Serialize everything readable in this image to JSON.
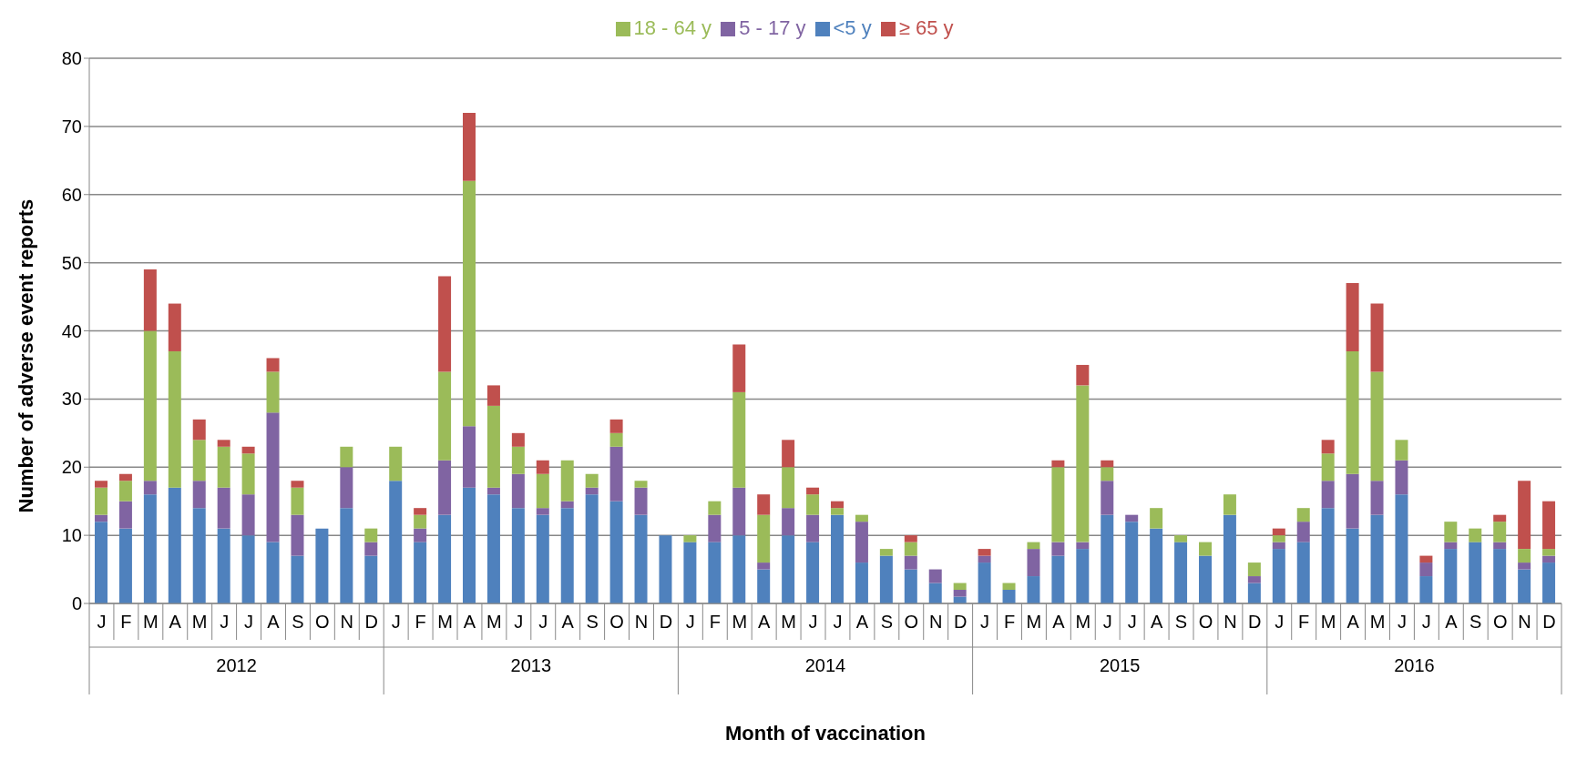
{
  "chart_data": {
    "type": "bar",
    "stacked": true,
    "xlabel": "Month of vaccination",
    "ylabel": "Number of adverse event reports",
    "categories": [
      "J",
      "F",
      "M",
      "A",
      "M",
      "J",
      "J",
      "A",
      "S",
      "O",
      "N",
      "D",
      "J",
      "F",
      "M",
      "A",
      "M",
      "J",
      "J",
      "A",
      "S",
      "O",
      "N",
      "D",
      "J",
      "F",
      "M",
      "A",
      "M",
      "J",
      "J",
      "A",
      "S",
      "O",
      "N",
      "D",
      "J",
      "F",
      "M",
      "A",
      "M",
      "J",
      "J",
      "A",
      "S",
      "O",
      "N",
      "D",
      "J",
      "F",
      "M",
      "A",
      "M",
      "J",
      "J",
      "A",
      "S",
      "O",
      "N",
      "D"
    ],
    "annotations": [
      "2012",
      "2013",
      "2014",
      "2015",
      "2016"
    ],
    "series": [
      {
        "name": "<5 y",
        "color": "#4f81bd",
        "values": [
          12,
          11,
          16,
          17,
          14,
          11,
          10,
          9,
          7,
          11,
          14,
          7,
          18,
          9,
          13,
          17,
          16,
          14,
          13,
          14,
          16,
          15,
          13,
          10,
          9,
          9,
          10,
          5,
          10,
          9,
          13,
          6,
          7,
          5,
          3,
          1,
          6,
          2,
          4,
          7,
          8,
          13,
          12,
          11,
          9,
          7,
          13,
          3,
          8,
          9,
          14,
          11,
          13,
          16,
          4,
          8,
          9,
          8,
          5,
          6
        ]
      },
      {
        "name": "5 - 17 y",
        "color": "#8064a2",
        "values": [
          1,
          4,
          2,
          0,
          4,
          6,
          6,
          19,
          6,
          0,
          6,
          2,
          0,
          2,
          8,
          9,
          1,
          5,
          1,
          1,
          1,
          8,
          4,
          0,
          0,
          4,
          7,
          1,
          4,
          4,
          0,
          6,
          0,
          2,
          2,
          1,
          1,
          0,
          4,
          2,
          1,
          5,
          1,
          0,
          0,
          0,
          0,
          1,
          1,
          3,
          4,
          8,
          5,
          5,
          2,
          1,
          0,
          1,
          1,
          1
        ]
      },
      {
        "name": "18 - 64 y",
        "color": "#9bbb59",
        "values": [
          4,
          3,
          22,
          20,
          6,
          6,
          6,
          6,
          4,
          0,
          3,
          2,
          5,
          2,
          13,
          36,
          12,
          4,
          5,
          6,
          2,
          2,
          1,
          0,
          1,
          2,
          14,
          7,
          6,
          3,
          1,
          1,
          1,
          2,
          0,
          1,
          0,
          1,
          1,
          11,
          23,
          2,
          0,
          3,
          1,
          2,
          3,
          2,
          1,
          2,
          4,
          18,
          16,
          3,
          0,
          3,
          2,
          3,
          2,
          1
        ]
      },
      {
        "name": "≥ 65 y",
        "color": "#c0504d",
        "values": [
          1,
          1,
          9,
          7,
          3,
          1,
          1,
          2,
          1,
          0,
          0,
          0,
          0,
          1,
          14,
          10,
          3,
          2,
          2,
          0,
          0,
          2,
          0,
          0,
          0,
          0,
          7,
          3,
          4,
          1,
          1,
          0,
          0,
          1,
          0,
          0,
          1,
          0,
          0,
          1,
          3,
          1,
          0,
          0,
          0,
          0,
          0,
          0,
          1,
          0,
          2,
          10,
          10,
          0,
          1,
          0,
          0,
          1,
          10,
          7
        ]
      }
    ],
    "ylim": [
      0,
      80
    ],
    "yticks": [
      0,
      10,
      20,
      30,
      40,
      50,
      60,
      70,
      80
    ],
    "grid": "y",
    "legend": "top"
  }
}
